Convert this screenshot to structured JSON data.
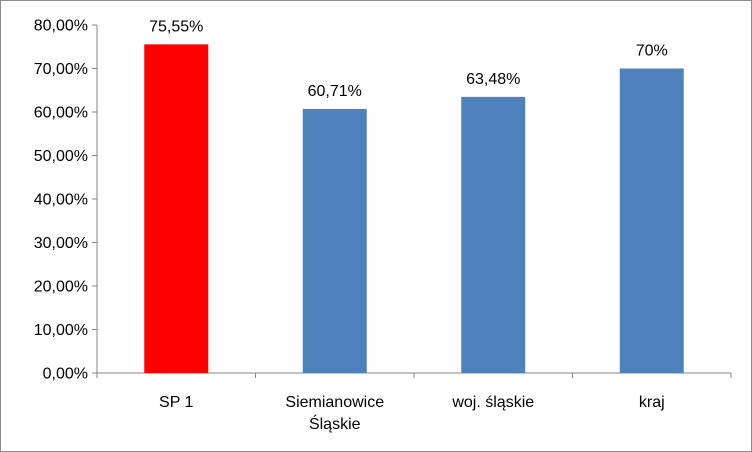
{
  "chart_data": {
    "type": "bar",
    "categories": [
      "SP 1",
      "Siemianowice Śląskie",
      "woj. śląskie",
      "kraj"
    ],
    "category_lines": [
      [
        "SP 1"
      ],
      [
        "Siemianowice",
        "Śląskie"
      ],
      [
        "woj. śląskie"
      ],
      [
        "kraj"
      ]
    ],
    "values": [
      75.55,
      60.71,
      63.48,
      70
    ],
    "data_labels": [
      "75,55%",
      "60,71%",
      "63,48%",
      "70%"
    ],
    "bar_colors": [
      "#ff0000",
      "#4f81bd",
      "#4f81bd",
      "#4f81bd"
    ],
    "ylim": [
      0,
      80
    ],
    "yticks": [
      0,
      10,
      20,
      30,
      40,
      50,
      60,
      70,
      80
    ],
    "ytick_labels": [
      "0,00%",
      "10,00%",
      "20,00%",
      "30,00%",
      "40,00%",
      "50,00%",
      "60,00%",
      "70,00%",
      "80,00%"
    ],
    "title": "",
    "xlabel": "",
    "ylabel": "",
    "grid": false,
    "legend": "none"
  }
}
